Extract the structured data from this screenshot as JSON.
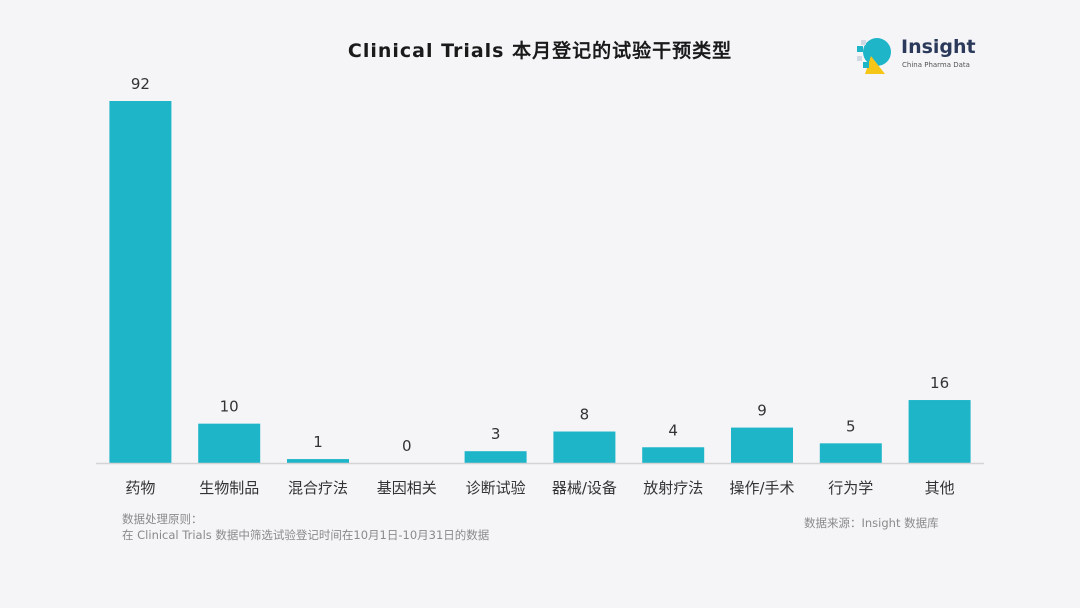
{
  "title": "Clinical Trials 本月登记的试验干预类型",
  "logo": {
    "name": "Insight",
    "subtitle": "China Pharma Data",
    "colors": [
      "#1fb5c9",
      "#f5c518",
      "#cfd8e3"
    ]
  },
  "notes": {
    "method_label": "数据处理原则：",
    "method_text": "在 Clinical Trials 数据中筛选试验登记时间在10月1日-10月31日的数据",
    "source": "数据来源：Insight  数据库"
  },
  "colors": {
    "bar": "#1fb5c9",
    "axis": "#d4d4d4"
  },
  "chart_data": {
    "type": "bar",
    "categories": [
      "药物",
      "生物制品",
      "混合疗法",
      "基因相关",
      "诊断试验",
      "器械/设备",
      "放射疗法",
      "操作/手术",
      "行为学",
      "其他"
    ],
    "values": [
      92,
      10,
      1,
      0,
      3,
      8,
      4,
      9,
      5,
      16
    ],
    "data_labels": [
      "92",
      "10",
      "1",
      "0",
      "3",
      "8",
      "4",
      "9",
      "5",
      "16"
    ],
    "ylim": [
      0,
      92
    ],
    "grid": false,
    "legend": "none"
  }
}
